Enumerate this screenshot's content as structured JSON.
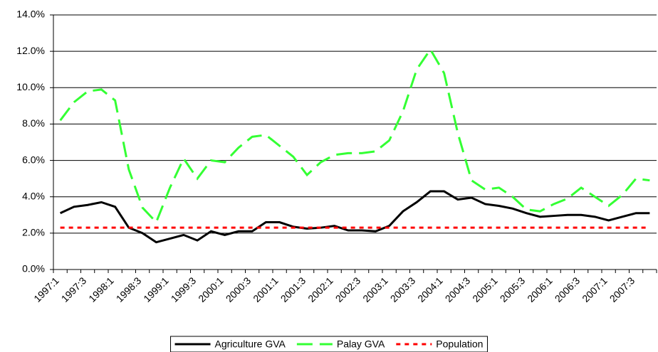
{
  "chart_data": {
    "type": "line",
    "categories": [
      "1997:1",
      null,
      "1997:3",
      null,
      "1998:1",
      null,
      "1998:3",
      null,
      "1999:1",
      null,
      "1999:3",
      null,
      "2000:1",
      null,
      "2000:3",
      null,
      "2001:1",
      null,
      "2001:3",
      null,
      "2002:1",
      null,
      "2002:3",
      null,
      "2003:1",
      null,
      "2003:3",
      null,
      "2004:1",
      null,
      "2004:3",
      null,
      "2005:1",
      null,
      "2005:3",
      null,
      "2006:1",
      null,
      "2006:3",
      null,
      "2007:1",
      null,
      "2007:3",
      null
    ],
    "series": [
      {
        "name": "Agriculture GVA",
        "color": "#000000",
        "dash": "solid",
        "values": [
          3.1,
          3.45,
          3.55,
          3.7,
          3.45,
          2.3,
          2.0,
          1.5,
          1.7,
          1.9,
          1.6,
          2.1,
          1.9,
          2.1,
          2.1,
          2.6,
          2.6,
          2.35,
          2.25,
          2.3,
          2.4,
          2.15,
          2.15,
          2.1,
          2.4,
          3.2,
          3.7,
          4.3,
          4.3,
          3.85,
          3.95,
          3.6,
          3.5,
          3.35,
          3.1,
          2.9,
          2.95,
          3.0,
          3.0,
          2.9,
          2.7,
          2.9,
          3.1,
          3.1
        ]
      },
      {
        "name": "Palay GVA",
        "color": "#33ff33",
        "dash": "dashed",
        "values": [
          8.2,
          9.2,
          9.8,
          9.9,
          9.3,
          5.5,
          3.4,
          2.6,
          4.5,
          6.1,
          5.0,
          6.0,
          5.9,
          6.7,
          7.3,
          7.4,
          6.8,
          6.2,
          5.2,
          5.9,
          6.3,
          6.4,
          6.4,
          6.5,
          7.1,
          8.7,
          11.0,
          12.1,
          10.8,
          7.5,
          4.9,
          4.4,
          4.5,
          4.0,
          3.3,
          3.2,
          3.6,
          3.9,
          4.5,
          4.0,
          3.5,
          4.1,
          5.0,
          4.9
        ]
      },
      {
        "name": "Population",
        "color": "#ff0000",
        "dash": "dotted",
        "values": [
          2.3,
          2.3,
          2.3,
          2.3,
          2.3,
          2.3,
          2.3,
          2.3,
          2.3,
          2.3,
          2.3,
          2.3,
          2.3,
          2.3,
          2.3,
          2.3,
          2.3,
          2.3,
          2.3,
          2.3,
          2.3,
          2.3,
          2.3,
          2.3,
          2.3,
          2.3,
          2.3,
          2.3,
          2.3,
          2.3,
          2.3,
          2.3,
          2.3,
          2.3,
          2.3,
          2.3,
          2.3,
          2.3,
          2.3,
          2.3,
          2.3,
          2.3,
          2.3,
          2.3
        ]
      }
    ],
    "ylim": [
      0,
      14
    ],
    "yticks": [
      {
        "value": 0,
        "label": "0.0%"
      },
      {
        "value": 2,
        "label": "2.0%"
      },
      {
        "value": 4,
        "label": "4.0%"
      },
      {
        "value": 6,
        "label": "6.0%"
      },
      {
        "value": 8,
        "label": "8.0%"
      },
      {
        "value": 10,
        "label": "10.0%"
      },
      {
        "value": 12,
        "label": "12.0%"
      },
      {
        "value": 14,
        "label": "14.0%"
      }
    ],
    "grid": true,
    "legend": "bottom"
  }
}
